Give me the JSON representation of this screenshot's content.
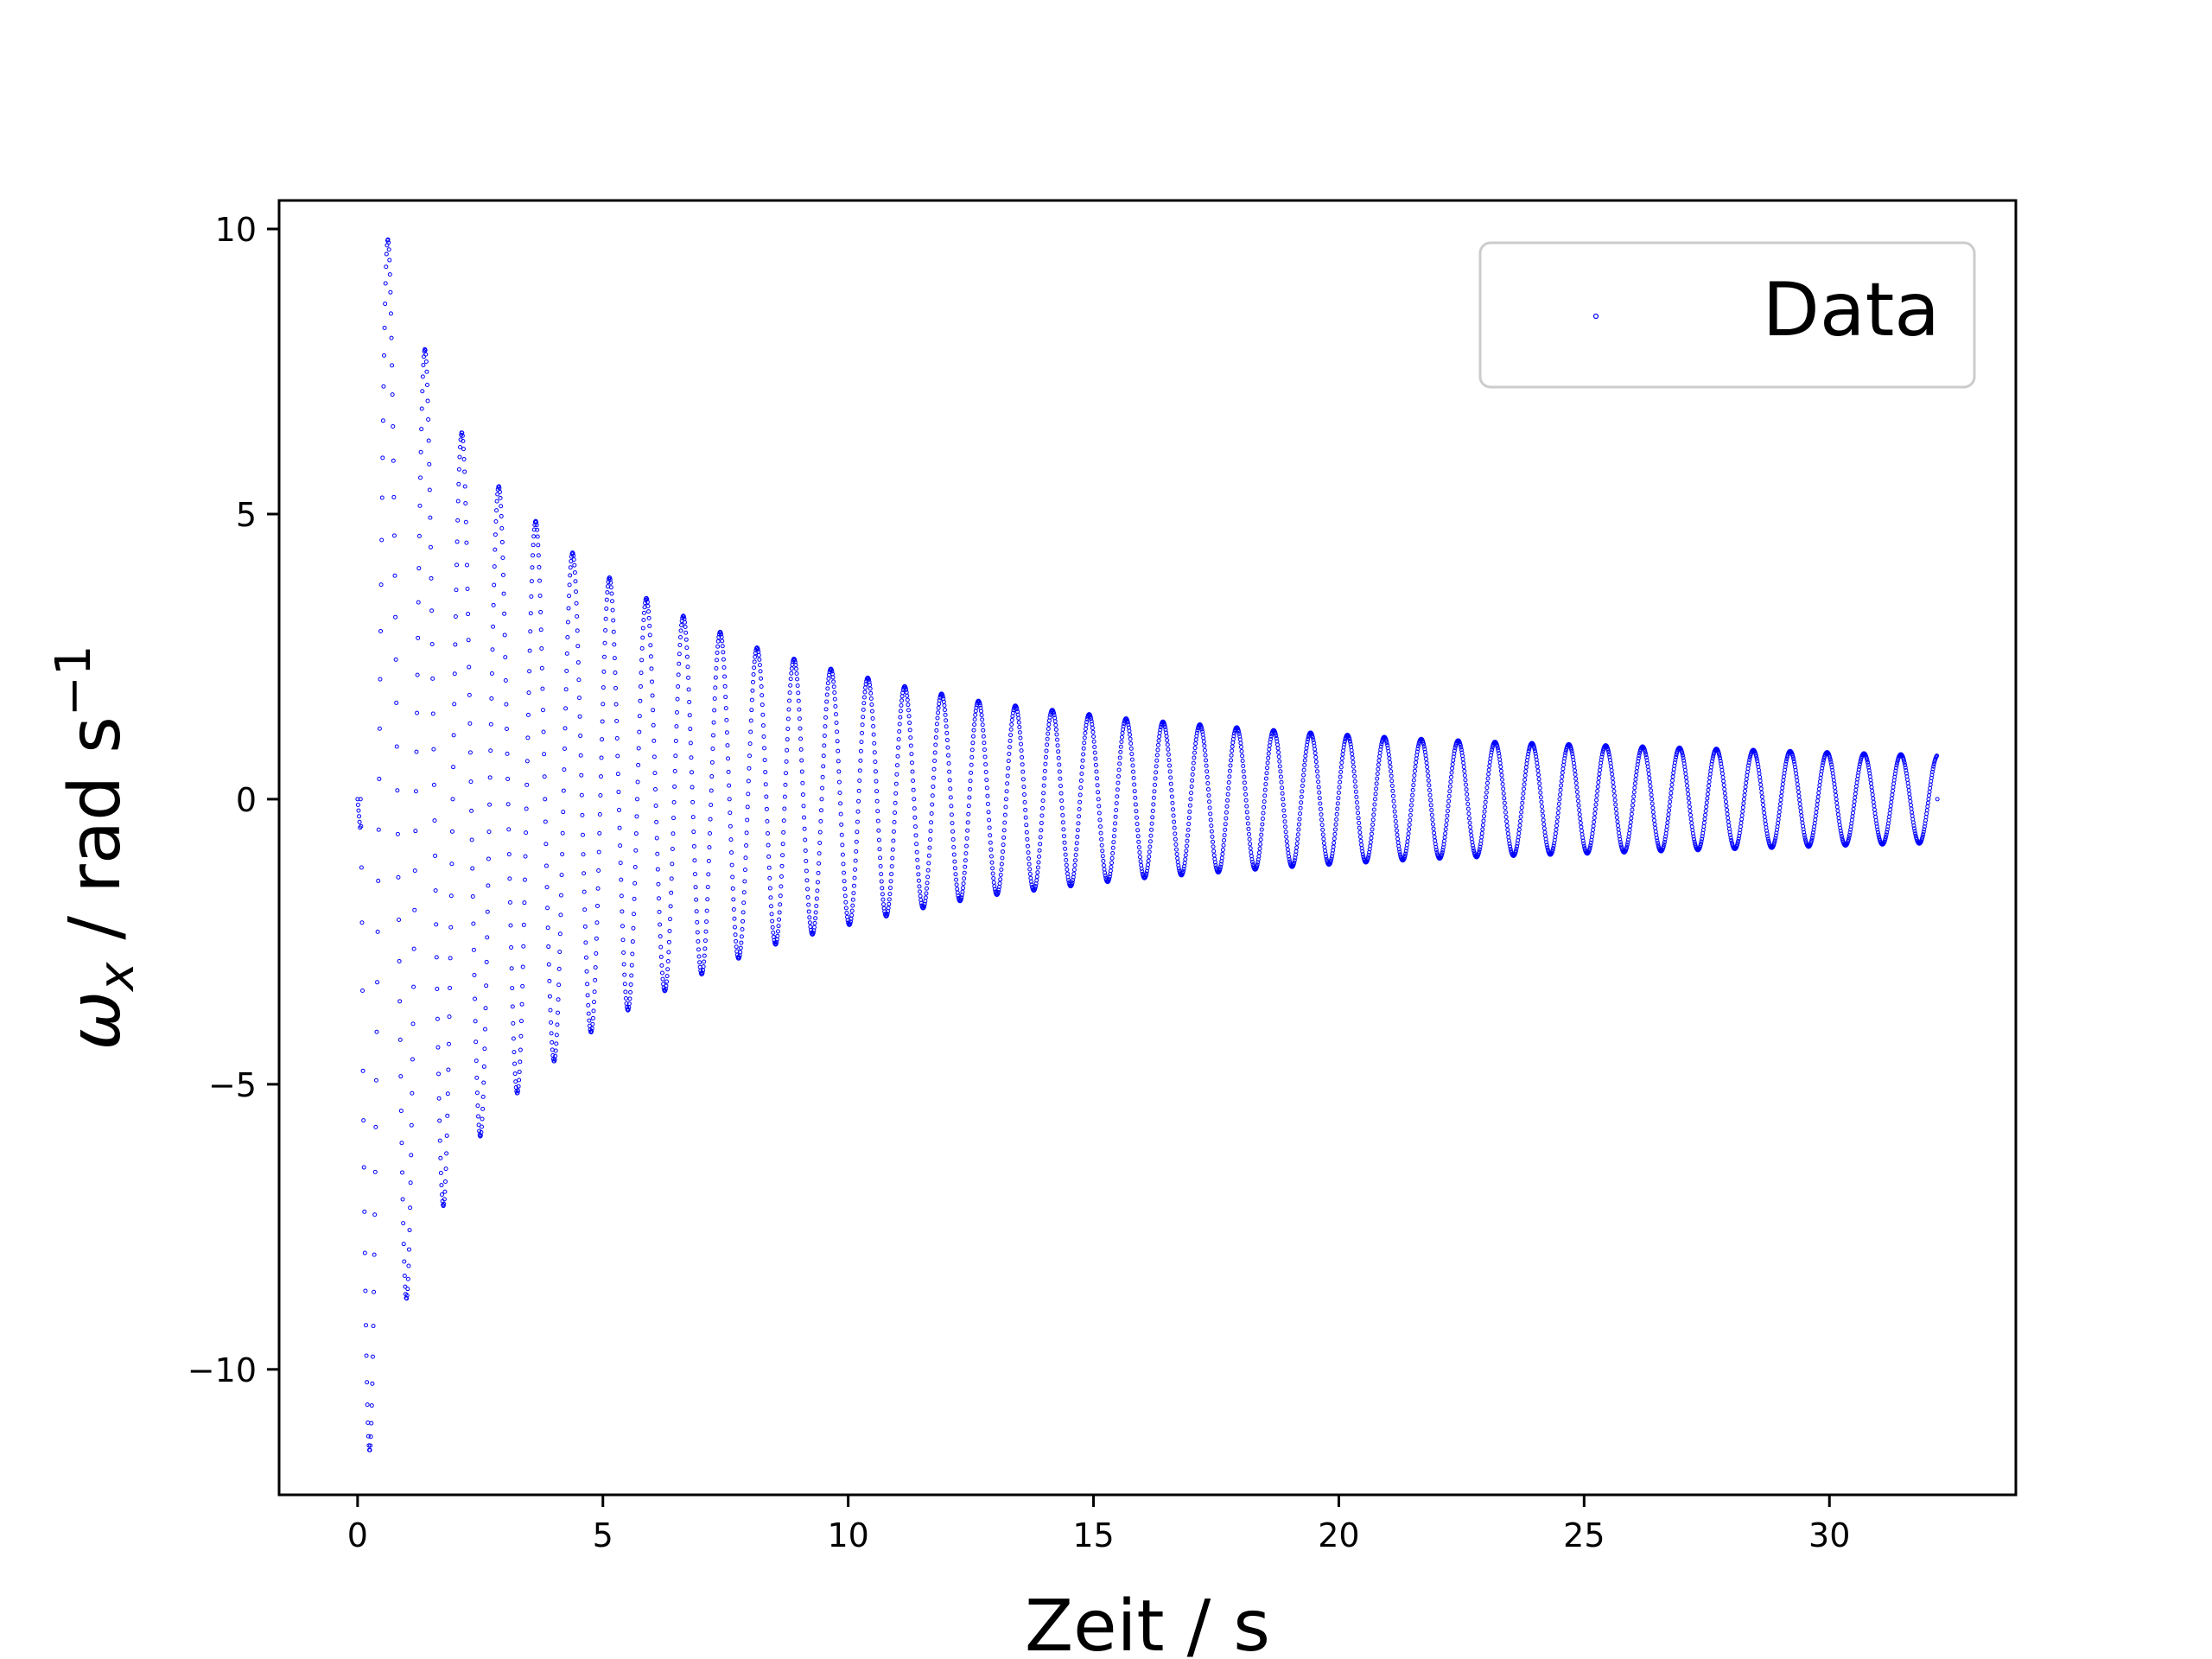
{
  "chart_data": {
    "type": "scatter",
    "title": "",
    "xlabel": "Zeit / s",
    "ylabel": {
      "symbol": "ω",
      "subscript": "x",
      "unit": " / rad s",
      "superscript": "−1"
    },
    "xlim": [
      -1.6,
      33.8
    ],
    "ylim": [
      -12.2,
      10.5
    ],
    "xticks": [
      {
        "value": 0,
        "label": "0"
      },
      {
        "value": 5,
        "label": "5"
      },
      {
        "value": 10,
        "label": "10"
      },
      {
        "value": 15,
        "label": "15"
      },
      {
        "value": 20,
        "label": "20"
      },
      {
        "value": 25,
        "label": "25"
      },
      {
        "value": 30,
        "label": "30"
      }
    ],
    "yticks": [
      {
        "value": -10,
        "label": "−10"
      },
      {
        "value": -5,
        "label": "−5"
      },
      {
        "value": 0,
        "label": "0"
      },
      {
        "value": 5,
        "label": "5"
      },
      {
        "value": 10,
        "label": "10"
      }
    ],
    "grid": false,
    "legend": {
      "position": "top-right",
      "entries": [
        {
          "label": "Data",
          "color": "#0000ff",
          "marker": "o"
        }
      ]
    },
    "series": [
      {
        "name": "Data",
        "color": "#0000ff",
        "marker": "hollow-circle",
        "description": "damped oscillation, t from 0 to 32.2 s, sampled ~100 Hz",
        "t_start": 0.0,
        "t_end": 32.2,
        "sample_step": 0.01,
        "period": 0.752,
        "initial_value": 0.0,
        "envelope": [
          {
            "t": 0.0,
            "amp": 12.0
          },
          {
            "t": 0.3,
            "amp": 11.3
          },
          {
            "t": 0.7,
            "amp": 9.45
          },
          {
            "t": 1.5,
            "amp": 7.6
          },
          {
            "t": 2.25,
            "amp": 6.2
          },
          {
            "t": 3.0,
            "amp": 5.35
          },
          {
            "t": 3.8,
            "amp": 4.75
          },
          {
            "t": 4.55,
            "amp": 4.2
          },
          {
            "t": 5.3,
            "amp": 3.8
          },
          {
            "t": 6.05,
            "amp": 3.45
          },
          {
            "t": 6.8,
            "amp": 3.15
          },
          {
            "t": 8.3,
            "amp": 2.6
          },
          {
            "t": 9.8,
            "amp": 2.25
          },
          {
            "t": 11.3,
            "amp": 1.95
          },
          {
            "t": 12.8,
            "amp": 1.7
          },
          {
            "t": 14.3,
            "amp": 1.55
          },
          {
            "t": 15.8,
            "amp": 1.4
          },
          {
            "t": 17.3,
            "amp": 1.3
          },
          {
            "t": 18.8,
            "amp": 1.2
          },
          {
            "t": 20.3,
            "amp": 1.12
          },
          {
            "t": 21.8,
            "amp": 1.05
          },
          {
            "t": 23.3,
            "amp": 1.0
          },
          {
            "t": 24.8,
            "amp": 0.96
          },
          {
            "t": 26.3,
            "amp": 0.92
          },
          {
            "t": 27.8,
            "amp": 0.88
          },
          {
            "t": 29.3,
            "amp": 0.84
          },
          {
            "t": 30.8,
            "amp": 0.8
          },
          {
            "t": 32.2,
            "amp": 0.77
          }
        ],
        "peaks": [
          {
            "t": 0.32,
            "value": -11.3
          },
          {
            "t": 0.7,
            "value": 9.45
          },
          {
            "t": 1.1,
            "value": -8.3
          },
          {
            "t": 1.5,
            "value": 7.5
          },
          {
            "t": 1.85,
            "value": -6.8
          },
          {
            "t": 2.25,
            "value": 6.25
          },
          {
            "t": 2.6,
            "value": -5.8
          },
          {
            "t": 3.0,
            "value": 5.4
          },
          {
            "t": 3.35,
            "value": -5.1
          },
          {
            "t": 3.8,
            "value": 4.75
          },
          {
            "t": 4.15,
            "value": -4.5
          },
          {
            "t": 4.55,
            "value": 4.25
          },
          {
            "t": 4.95,
            "value": -4.0
          },
          {
            "t": 5.3,
            "value": 3.8
          },
          {
            "t": 5.7,
            "value": -3.6
          },
          {
            "t": 6.05,
            "value": 3.45
          },
          {
            "t": 6.45,
            "value": -3.3
          },
          {
            "t": 6.8,
            "value": 3.15
          },
          {
            "t": 7.2,
            "value": -3.05
          }
        ]
      }
    ]
  }
}
